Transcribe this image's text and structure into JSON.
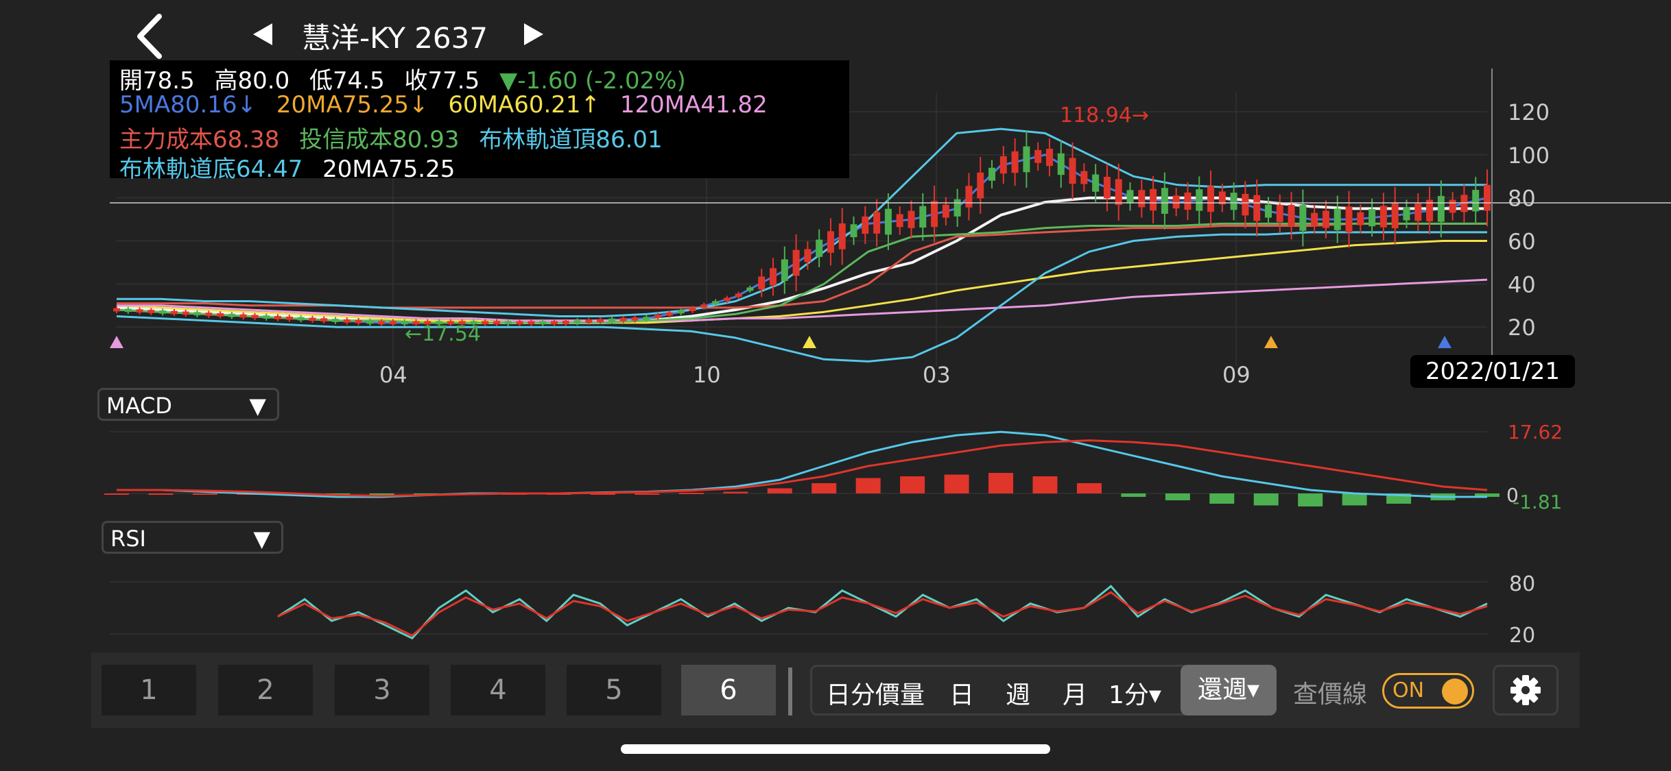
{
  "header": {
    "title": "慧洋-KY 2637",
    "back_icon": "chevron-left-icon",
    "prev_icon": "triangle-left-icon",
    "next_icon": "triangle-right-icon"
  },
  "quote": {
    "open": "開78.5",
    "high": "高80.0",
    "low": "低74.5",
    "close": "收77.5",
    "change": "▼-1.60 (-2.02%)",
    "ma5": "5MA80.16↓",
    "ma20": "20MA75.25↓",
    "ma60": "60MA60.21↑",
    "ma120": "120MA41.82",
    "main_cost": "主力成本68.38",
    "trust_cost": "投信成本80.93",
    "boll_top": "布林軌道頂86.01",
    "boll_bottom": "布林軌道底64.47",
    "ma20_plain": "20MA75.25"
  },
  "colors": {
    "background": "#222222",
    "up": "#e0352b",
    "down": "#4caf50",
    "ma5": "#4a78e0",
    "ma20": "#f0a830",
    "ma60": "#f5e14a",
    "ma120": "#e79ae0",
    "main_cost": "#e0574b",
    "trust_cost": "#5cb85c",
    "boll": "#56c8e8",
    "accent": "#f0a830"
  },
  "price_chart": {
    "y_ticks": [
      "120",
      "100",
      "80",
      "60",
      "40",
      "20"
    ],
    "x_ticks": [
      "04",
      "10",
      "03",
      "09"
    ],
    "max_label": "118.94→",
    "min_label": "←17.54",
    "date_badge": "2022/01/21"
  },
  "macd": {
    "selector_label": "MACD",
    "value_top": "17.62",
    "zero_label": "0",
    "value_bottom": "-1.81"
  },
  "rsi": {
    "selector_label": "RSI",
    "tick_high": "80",
    "tick_low": "20"
  },
  "toolbar": {
    "num_tabs": [
      "1",
      "2",
      "3",
      "4",
      "5",
      "6"
    ],
    "active_tab": "6",
    "periods": [
      "日分價量",
      "日",
      "週",
      "月",
      "1分▾"
    ],
    "week_return": "還週▾",
    "lookup_label": "查價線",
    "toggle_state": "ON",
    "settings_icon": "gear-icon"
  },
  "chart_data": [
    {
      "type": "line",
      "title": "",
      "ylim": [
        0,
        130
      ],
      "y_ticks": [
        120,
        100,
        80,
        60,
        40,
        20
      ],
      "x_ticks": [
        "04",
        "10",
        "03",
        "09"
      ],
      "grid": true,
      "series": [
        {
          "name": "5MA",
          "values": [
            28,
            27,
            26,
            25,
            24,
            23,
            22,
            22,
            22,
            22,
            22,
            23,
            24,
            28,
            34,
            45,
            58,
            68,
            70,
            75,
            95,
            100,
            88,
            80,
            78,
            80,
            74,
            70,
            70,
            72,
            75,
            80
          ]
        },
        {
          "name": "20MA",
          "values": [
            29,
            28,
            27,
            26,
            25,
            24,
            23,
            23,
            22,
            22,
            22,
            22,
            23,
            25,
            28,
            32,
            38,
            45,
            50,
            60,
            72,
            78,
            80,
            80,
            80,
            80,
            78,
            76,
            75,
            75,
            75,
            75
          ]
        },
        {
          "name": "60MA",
          "values": [
            30,
            29,
            28,
            27,
            26,
            25,
            24,
            23,
            23,
            22,
            22,
            22,
            22,
            23,
            24,
            25,
            27,
            30,
            33,
            37,
            40,
            43,
            46,
            48,
            50,
            52,
            54,
            56,
            58,
            59,
            60,
            60
          ]
        },
        {
          "name": "120MA",
          "values": [
            30,
            30,
            29,
            28,
            27,
            26,
            25,
            24,
            24,
            23,
            23,
            23,
            23,
            23,
            24,
            24,
            25,
            26,
            27,
            28,
            29,
            30,
            32,
            34,
            35,
            36,
            37,
            38,
            39,
            40,
            41,
            42
          ]
        },
        {
          "name": "主力成本",
          "values": [
            31,
            31,
            31,
            30,
            30,
            30,
            29,
            29,
            29,
            29,
            29,
            29,
            29,
            29,
            29,
            30,
            32,
            40,
            55,
            62,
            63,
            64,
            65,
            66,
            66,
            67,
            67,
            67,
            68,
            68,
            68,
            68
          ]
        },
        {
          "name": "投信成本",
          "values": [
            28,
            27,
            26,
            25,
            24,
            23,
            23,
            22,
            22,
            22,
            22,
            22,
            23,
            24,
            26,
            30,
            40,
            55,
            62,
            63,
            64,
            66,
            67,
            67,
            67,
            68,
            68,
            68,
            68,
            68,
            68,
            68
          ]
        },
        {
          "name": "布林軌道頂",
          "values": [
            33,
            33,
            32,
            32,
            31,
            30,
            29,
            28,
            27,
            26,
            25,
            25,
            26,
            28,
            32,
            40,
            55,
            70,
            90,
            110,
            112,
            110,
            100,
            90,
            86,
            85,
            86,
            86,
            86,
            86,
            86,
            86
          ]
        },
        {
          "name": "布林軌道底",
          "values": [
            25,
            24,
            23,
            22,
            21,
            20,
            20,
            20,
            20,
            20,
            20,
            20,
            19,
            18,
            15,
            10,
            5,
            4,
            6,
            15,
            30,
            45,
            55,
            60,
            62,
            63,
            63,
            64,
            64,
            64,
            64,
            64
          ]
        }
      ]
    },
    {
      "type": "bar",
      "title": "MACD",
      "y_ticks": [
        17.62,
        0,
        -1.81
      ],
      "values": [
        0,
        0,
        0,
        0,
        -0.3,
        -0.4,
        -0.3,
        -0.2,
        0,
        0,
        0,
        0,
        0,
        0.2,
        0.5,
        1.5,
        3,
        4.5,
        5,
        5.5,
        6,
        5,
        3,
        -1,
        -2,
        -3,
        -3.5,
        -3.8,
        -3.5,
        -3,
        -2,
        -1
      ],
      "series": [
        {
          "name": "DIF",
          "values": [
            1,
            1,
            0.5,
            0,
            -0.5,
            -1,
            -1,
            -0.5,
            0,
            0,
            0,
            0.3,
            0.5,
            1,
            2,
            4,
            8,
            12,
            15,
            17,
            18,
            17,
            14,
            11,
            8,
            5,
            3,
            1,
            0,
            -0.5,
            -1,
            -1
          ]
        },
        {
          "name": "DEA",
          "values": [
            1,
            1,
            0.8,
            0.5,
            0,
            -0.5,
            -0.7,
            -0.5,
            -0.2,
            0,
            0,
            0.2,
            0.4,
            0.8,
            1.5,
            3,
            5,
            8,
            10,
            12,
            14,
            15,
            15.5,
            15,
            14,
            12,
            10,
            8,
            6,
            4,
            2,
            1
          ]
        }
      ]
    },
    {
      "type": "line",
      "title": "RSI",
      "ylim": [
        0,
        100
      ],
      "y_ticks": [
        80,
        20
      ],
      "series": [
        {
          "name": "RSI-fast",
          "values": [
            40,
            60,
            35,
            45,
            30,
            15,
            50,
            70,
            45,
            60,
            35,
            65,
            55,
            30,
            45,
            60,
            40,
            55,
            35,
            50,
            45,
            70,
            55,
            40,
            65,
            50,
            60,
            35,
            55,
            45,
            50,
            75,
            40,
            60,
            45,
            55,
            70,
            50,
            40,
            65,
            55,
            45,
            60,
            50,
            40,
            55
          ]
        },
        {
          "name": "RSI-slow",
          "values": [
            40,
            55,
            38,
            42,
            33,
            18,
            45,
            62,
            48,
            55,
            38,
            58,
            52,
            35,
            45,
            55,
            42,
            52,
            38,
            48,
            46,
            62,
            55,
            44,
            60,
            50,
            56,
            40,
            52,
            46,
            50,
            68,
            44,
            58,
            46,
            54,
            64,
            50,
            42,
            60,
            54,
            46,
            56,
            50,
            43,
            52
          ]
        }
      ]
    }
  ]
}
